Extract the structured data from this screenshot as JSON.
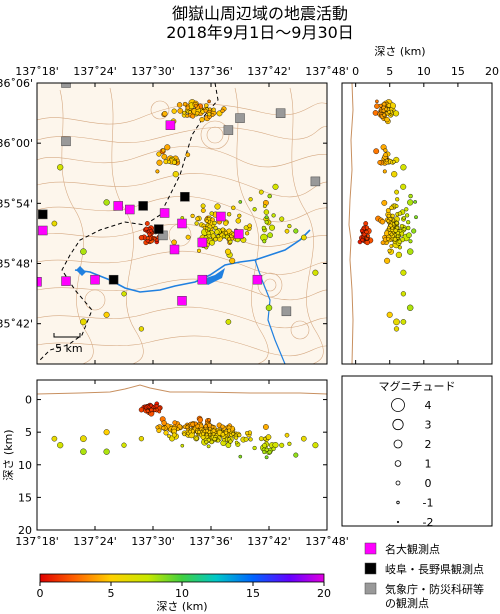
{
  "title": {
    "line1": "御嶽山周辺域の地震活動",
    "line2": "2018年9月1日～9月30日"
  },
  "map": {
    "lon_ticks": [
      "137˚18'",
      "137˚24'",
      "137˚30'",
      "137˚36'",
      "137˚42'",
      "137˚48'"
    ],
    "lat_ticks": [
      "36˚06'",
      "36˚00'",
      "35˚54'",
      "35˚48'",
      "35˚42'"
    ],
    "scale_label": "5 km"
  },
  "depth_panel_right": {
    "axis_label": "深さ (km)",
    "ticks": [
      "0",
      "5",
      "10",
      "15",
      "20"
    ]
  },
  "depth_panel_bottom": {
    "axis_label": "深さ (km)",
    "ticks": [
      "0",
      "5",
      "10",
      "15",
      "20"
    ],
    "lon_ticks": [
      "137˚18'",
      "137˚24'",
      "137˚30'",
      "137˚36'",
      "137˚42'",
      "137˚48'"
    ]
  },
  "magnitude_legend": {
    "title": "マグニチュード",
    "items": [
      {
        "m": "4",
        "r": 6.5
      },
      {
        "m": "3",
        "r": 5.2
      },
      {
        "m": "2",
        "r": 4.0
      },
      {
        "m": "1",
        "r": 2.9
      },
      {
        "m": "0",
        "r": 2.0
      },
      {
        "m": "-1",
        "r": 1.3
      },
      {
        "m": "-2",
        "r": 0.7
      }
    ]
  },
  "station_legend": [
    {
      "label": "名大観測点",
      "color": "#ff00ff"
    },
    {
      "label": "岐阜・長野県観測点",
      "color": "#000000"
    },
    {
      "label": "気象庁・防災科研等",
      "label2": "の観測点",
      "color": "#999999"
    }
  ],
  "colorbar": {
    "label": "深さ (km)",
    "ticks": [
      "0",
      "5",
      "10",
      "15",
      "20"
    ],
    "colors": [
      "#e00000",
      "#ff6000",
      "#ffd000",
      "#c8e800",
      "#40d040",
      "#00c8c8",
      "#0064ff",
      "#6400ff",
      "#e000e0"
    ]
  },
  "stations": [
    {
      "type": "gray",
      "lon": 137.35,
      "lat": 36.1
    },
    {
      "type": "gray",
      "lon": 137.35,
      "lat": 36.017
    },
    {
      "type": "gray",
      "lon": 137.65,
      "lat": 36.05
    },
    {
      "type": "gray",
      "lon": 137.72,
      "lat": 36.057
    },
    {
      "type": "gray",
      "lon": 137.63,
      "lat": 36.033
    },
    {
      "type": "gray",
      "lon": 137.78,
      "lat": 35.96
    },
    {
      "type": "gray",
      "lon": 137.517,
      "lat": 35.883
    },
    {
      "type": "gray",
      "lon": 137.73,
      "lat": 35.775
    },
    {
      "type": "magenta",
      "lon": 137.53,
      "lat": 36.04
    },
    {
      "type": "magenta",
      "lon": 137.44,
      "lat": 35.925
    },
    {
      "type": "magenta",
      "lon": 137.46,
      "lat": 35.92
    },
    {
      "type": "magenta",
      "lon": 137.52,
      "lat": 35.915
    },
    {
      "type": "magenta",
      "lon": 137.55,
      "lat": 35.9
    },
    {
      "type": "magenta",
      "lon": 137.617,
      "lat": 35.91
    },
    {
      "type": "magenta",
      "lon": 137.585,
      "lat": 35.873
    },
    {
      "type": "magenta",
      "lon": 137.537,
      "lat": 35.863
    },
    {
      "type": "magenta",
      "lon": 137.648,
      "lat": 35.885
    },
    {
      "type": "magenta",
      "lon": 137.31,
      "lat": 35.89
    },
    {
      "type": "magenta",
      "lon": 137.4,
      "lat": 35.82
    },
    {
      "type": "magenta",
      "lon": 137.35,
      "lat": 35.818
    },
    {
      "type": "magenta",
      "lon": 137.3,
      "lat": 35.817
    },
    {
      "type": "magenta",
      "lon": 137.585,
      "lat": 35.82
    },
    {
      "type": "magenta",
      "lon": 137.55,
      "lat": 35.79
    },
    {
      "type": "magenta",
      "lon": 137.68,
      "lat": 35.82
    },
    {
      "type": "black",
      "lon": 137.31,
      "lat": 35.913
    },
    {
      "type": "black",
      "lon": 137.483,
      "lat": 35.925
    },
    {
      "type": "black",
      "lon": 137.51,
      "lat": 35.892
    },
    {
      "type": "black",
      "lon": 137.432,
      "lat": 35.82
    },
    {
      "type": "black",
      "lon": 137.555,
      "lat": 35.938
    }
  ]
}
